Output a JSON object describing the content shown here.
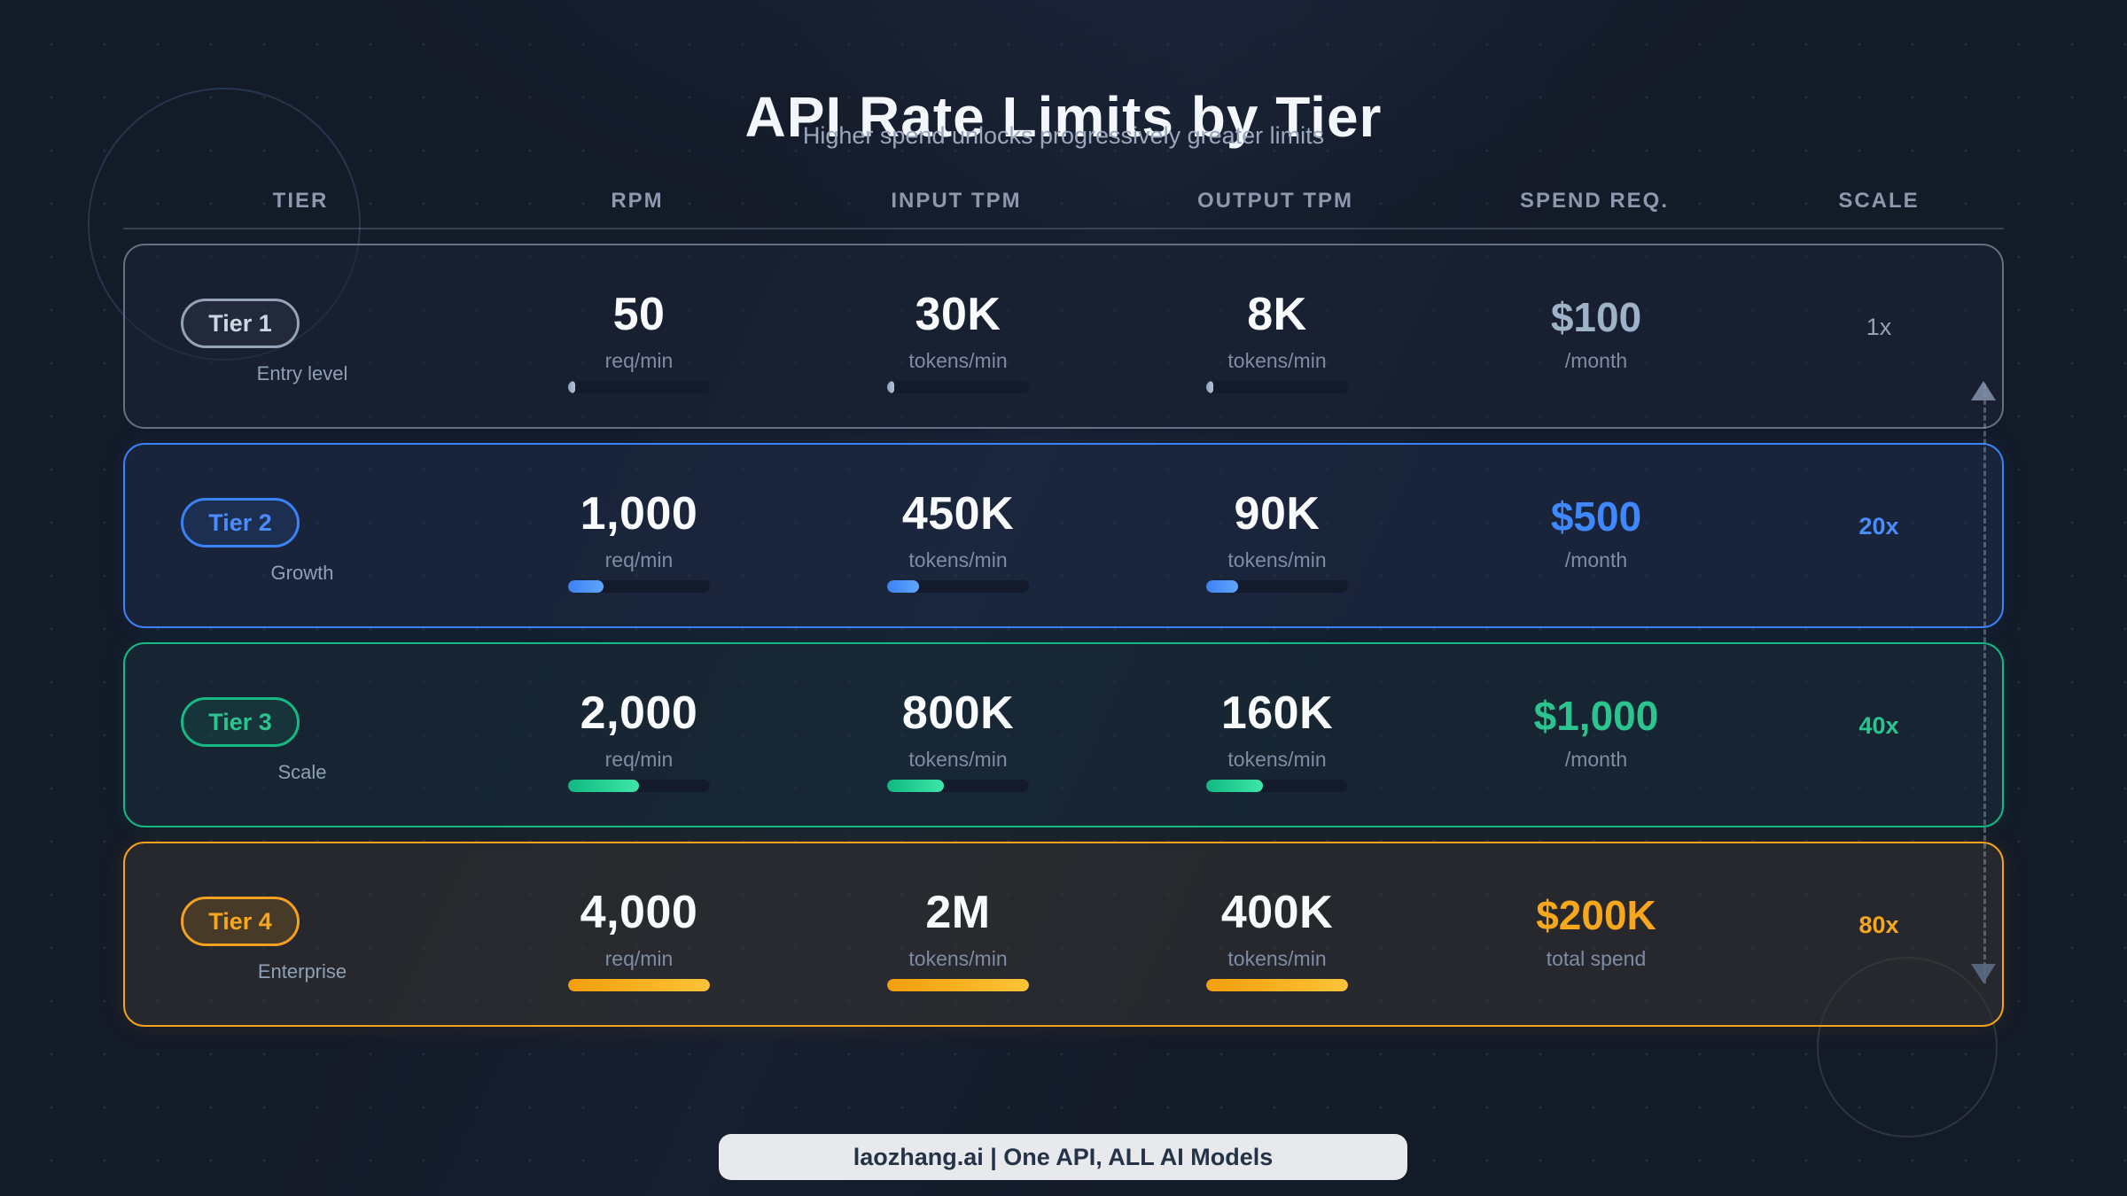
{
  "page": {
    "title": "API Rate Limits by Tier",
    "subtitle": "Higher spend unlocks progressively greater limits"
  },
  "columns": {
    "tier": "TIER",
    "rpm": "RPM",
    "input_tpm": "INPUT TPM",
    "output_tpm": "OUTPUT TPM",
    "spend": "SPEND REQ.",
    "scale": "SCALE"
  },
  "tiers": [
    {
      "name": "Tier 1",
      "label": "Entry level",
      "accent": "#94a3b8",
      "rpm": {
        "value": "50",
        "unit": "req/min",
        "pct": 5
      },
      "input_tpm": {
        "value": "30K",
        "unit": "tokens/min",
        "pct": 5
      },
      "output_tpm": {
        "value": "8K",
        "unit": "tokens/min",
        "pct": 5
      },
      "spend": {
        "value": "$100",
        "unit": "/month"
      },
      "scale": "1x"
    },
    {
      "name": "Tier 2",
      "label": "Growth",
      "accent": "#3b82f6",
      "rpm": {
        "value": "1,000",
        "unit": "req/min",
        "pct": 25
      },
      "input_tpm": {
        "value": "450K",
        "unit": "tokens/min",
        "pct": 22.5
      },
      "output_tpm": {
        "value": "90K",
        "unit": "tokens/min",
        "pct": 22.5
      },
      "spend": {
        "value": "$500",
        "unit": "/month"
      },
      "scale": "20x"
    },
    {
      "name": "Tier 3",
      "label": "Scale",
      "accent": "#10b981",
      "rpm": {
        "value": "2,000",
        "unit": "req/min",
        "pct": 50
      },
      "input_tpm": {
        "value": "800K",
        "unit": "tokens/min",
        "pct": 40
      },
      "output_tpm": {
        "value": "160K",
        "unit": "tokens/min",
        "pct": 40
      },
      "spend": {
        "value": "$1,000",
        "unit": "/month"
      },
      "scale": "40x"
    },
    {
      "name": "Tier 4",
      "label": "Enterprise",
      "accent": "#f59e0b",
      "rpm": {
        "value": "4,000",
        "unit": "req/min",
        "pct": 100
      },
      "input_tpm": {
        "value": "2M",
        "unit": "tokens/min",
        "pct": 100
      },
      "output_tpm": {
        "value": "400K",
        "unit": "tokens/min",
        "pct": 100
      },
      "spend": {
        "value": "$200K",
        "unit": "total spend"
      },
      "scale": "80x"
    }
  ],
  "footer": {
    "text": "laozhang.ai | One API, ALL AI Models"
  },
  "colors": {
    "background": "#131a28",
    "card_background": "#1b2436",
    "tier1_accent": "#94a3b8",
    "tier2_accent": "#3b82f6",
    "tier3_accent": "#10b981",
    "tier4_accent": "#f59e0b",
    "value_text": "#f8fafc",
    "muted_text": "#7f8ca3",
    "footer_background": "#e7e9ec"
  },
  "chart_data": {
    "type": "table",
    "title": "API Rate Limits by Tier",
    "subtitle": "Higher spend unlocks progressively greater limits",
    "columns": [
      "TIER",
      "RPM",
      "INPUT TPM",
      "OUTPUT TPM",
      "SPEND REQ.",
      "SCALE"
    ],
    "rows": [
      [
        "Tier 1 (Entry level)",
        50,
        30000,
        8000,
        "$100/month",
        "1x"
      ],
      [
        "Tier 2 (Growth)",
        1000,
        450000,
        90000,
        "$500/month",
        "20x"
      ],
      [
        "Tier 3 (Scale)",
        2000,
        800000,
        160000,
        "$1,000/month",
        "40x"
      ],
      [
        "Tier 4 (Enterprise)",
        4000,
        2000000,
        400000,
        "$200K total spend",
        "80x"
      ]
    ],
    "bar_fill_percent": {
      "rpm": [
        5,
        25,
        50,
        100
      ],
      "input_tpm": [
        5,
        22.5,
        40,
        100
      ],
      "output_tpm": [
        5,
        22.5,
        40,
        100
      ]
    },
    "axis_note": "vertical dashed arrow on right indicates increasing scale from 1x to 80x"
  }
}
